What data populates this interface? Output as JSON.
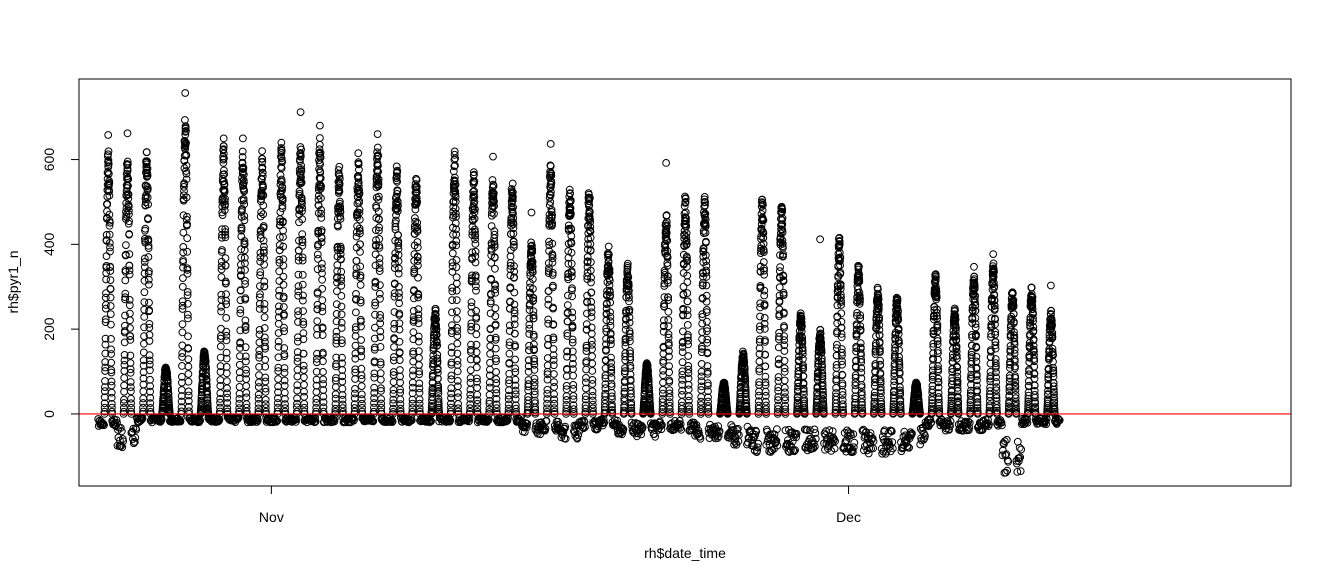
{
  "chart_data": {
    "type": "scatter",
    "title": "",
    "xlabel": "rh$date_time",
    "ylabel": "rh$pyr1_n",
    "x_range": [
      "2018-10-22",
      "2018-12-24"
    ],
    "x_ticks": [
      {
        "label": "Nov",
        "date": "2018-11-01"
      },
      {
        "label": "Dec",
        "date": "2018-12-01"
      }
    ],
    "ylim": [
      -170,
      790
    ],
    "y_ticks": [
      0,
      200,
      400,
      600
    ],
    "marker": "open-circle",
    "point_color": "#000000",
    "reference_line": {
      "y": 0,
      "color": "#ff0000"
    },
    "daily_series": [
      {
        "date": "2018-10-23",
        "peak": 630,
        "night_min": -30,
        "outlier": 658
      },
      {
        "date": "2018-10-24",
        "peak": 620,
        "night_min": -80,
        "outlier": 662
      },
      {
        "date": "2018-10-25",
        "peak": 630,
        "night_min": -20,
        "outlier": null
      },
      {
        "date": "2018-10-26",
        "peak": 115,
        "night_min": -20,
        "outlier": null
      },
      {
        "date": "2018-10-27",
        "peak": 720,
        "night_min": -20,
        "outlier": 757
      },
      {
        "date": "2018-10-28",
        "peak": 150,
        "night_min": -20,
        "outlier": null
      },
      {
        "date": "2018-10-29",
        "peak": 640,
        "night_min": -20,
        "outlier": 650
      },
      {
        "date": "2018-10-30",
        "peak": 630,
        "night_min": -20,
        "outlier": 650
      },
      {
        "date": "2018-10-31",
        "peak": 610,
        "night_min": -20,
        "outlier": 620
      },
      {
        "date": "2018-11-01",
        "peak": 630,
        "night_min": -20,
        "outlier": 640
      },
      {
        "date": "2018-11-02",
        "peak": 650,
        "night_min": -20,
        "outlier": 712
      },
      {
        "date": "2018-11-03",
        "peak": 660,
        "night_min": -20,
        "outlier": 680
      },
      {
        "date": "2018-11-04",
        "peak": 600,
        "night_min": -20,
        "outlier": null
      },
      {
        "date": "2018-11-05",
        "peak": 610,
        "night_min": -20,
        "outlier": 615
      },
      {
        "date": "2018-11-06",
        "peak": 640,
        "night_min": -20,
        "outlier": 660
      },
      {
        "date": "2018-11-07",
        "peak": 590,
        "night_min": -20,
        "outlier": null
      },
      {
        "date": "2018-11-08",
        "peak": 580,
        "night_min": -20,
        "outlier": null
      },
      {
        "date": "2018-11-09",
        "peak": 250,
        "night_min": -20,
        "outlier": null
      },
      {
        "date": "2018-11-10",
        "peak": 630,
        "night_min": -20,
        "outlier": null
      },
      {
        "date": "2018-11-11",
        "peak": 580,
        "night_min": -20,
        "outlier": null
      },
      {
        "date": "2018-11-12",
        "peak": 570,
        "night_min": -20,
        "outlier": 607
      },
      {
        "date": "2018-11-13",
        "peak": 560,
        "night_min": -20,
        "outlier": null
      },
      {
        "date": "2018-11-14",
        "peak": 420,
        "night_min": -50,
        "outlier": 475
      },
      {
        "date": "2018-11-15",
        "peak": 600,
        "night_min": -40,
        "outlier": 637
      },
      {
        "date": "2018-11-16",
        "peak": 550,
        "night_min": -60,
        "outlier": null
      },
      {
        "date": "2018-11-17",
        "peak": 545,
        "night_min": -40,
        "outlier": null
      },
      {
        "date": "2018-11-18",
        "peak": 405,
        "night_min": -30,
        "outlier": null
      },
      {
        "date": "2018-11-19",
        "peak": 360,
        "night_min": -50,
        "outlier": null
      },
      {
        "date": "2018-11-20",
        "peak": 120,
        "night_min": -55,
        "outlier": null
      },
      {
        "date": "2018-11-21",
        "peak": 480,
        "night_min": -40,
        "outlier": 592
      },
      {
        "date": "2018-11-22",
        "peak": 525,
        "night_min": -40,
        "outlier": null
      },
      {
        "date": "2018-11-23",
        "peak": 515,
        "night_min": -60,
        "outlier": null
      },
      {
        "date": "2018-11-24",
        "peak": 75,
        "night_min": -65,
        "outlier": null
      },
      {
        "date": "2018-11-25",
        "peak": 150,
        "night_min": -75,
        "outlier": null
      },
      {
        "date": "2018-11-26",
        "peak": 520,
        "night_min": -90,
        "outlier": null
      },
      {
        "date": "2018-11-27",
        "peak": 525,
        "night_min": -90,
        "outlier": null
      },
      {
        "date": "2018-11-28",
        "peak": 240,
        "night_min": -90,
        "outlier": null
      },
      {
        "date": "2018-11-29",
        "peak": 200,
        "night_min": -90,
        "outlier": 412
      },
      {
        "date": "2018-11-30",
        "peak": 420,
        "night_min": -90,
        "outlier": null
      },
      {
        "date": "2018-12-01",
        "peak": 355,
        "night_min": -90,
        "outlier": null
      },
      {
        "date": "2018-12-02",
        "peak": 300,
        "night_min": -95,
        "outlier": null
      },
      {
        "date": "2018-12-03",
        "peak": 285,
        "night_min": -90,
        "outlier": null
      },
      {
        "date": "2018-12-04",
        "peak": 75,
        "night_min": -80,
        "outlier": null
      },
      {
        "date": "2018-12-05",
        "peak": 335,
        "night_min": -30,
        "outlier": null
      },
      {
        "date": "2018-12-06",
        "peak": 250,
        "night_min": -40,
        "outlier": null
      },
      {
        "date": "2018-12-07",
        "peak": 330,
        "night_min": -40,
        "outlier": 347
      },
      {
        "date": "2018-12-08",
        "peak": 360,
        "night_min": -30,
        "outlier": 377
      },
      {
        "date": "2018-12-09",
        "peak": 300,
        "night_min": -140,
        "outlier": null
      },
      {
        "date": "2018-12-10",
        "peak": 305,
        "night_min": -25,
        "outlier": null
      },
      {
        "date": "2018-12-11",
        "peak": 245,
        "night_min": -25,
        "outlier": 303
      }
    ]
  }
}
